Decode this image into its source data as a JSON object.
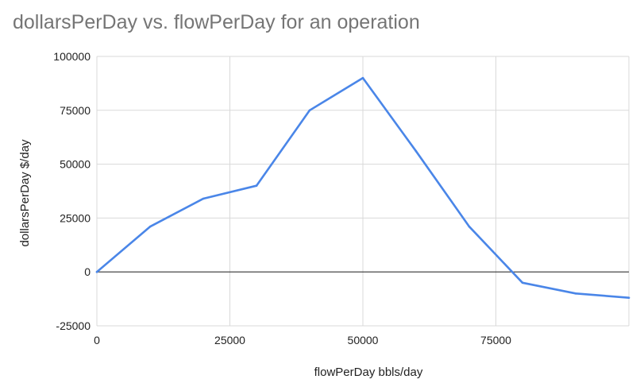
{
  "chart_data": {
    "type": "line",
    "title": "dollarsPerDay vs. flowPerDay for an operation",
    "xlabel": "flowPerDay bbls/day",
    "ylabel": "dollarsPerDay $/day",
    "xlim": [
      0,
      100000
    ],
    "ylim": [
      -25000,
      100000
    ],
    "x_ticks": [
      "0",
      "25000",
      "50000",
      "75000"
    ],
    "y_ticks": [
      "100000",
      "75000",
      "50000",
      "25000",
      "0",
      "-25000"
    ],
    "grid": true,
    "legend": "none",
    "series": [
      {
        "color": "#4a86e8",
        "x": [
          0,
          10000,
          20000,
          30000,
          40000,
          50000,
          60000,
          70000,
          80000,
          90000,
          100000
        ],
        "y": [
          0,
          21000,
          34000,
          40000,
          75000,
          90000,
          56000,
          21000,
          -5000,
          -10000,
          -12000
        ]
      }
    ]
  }
}
